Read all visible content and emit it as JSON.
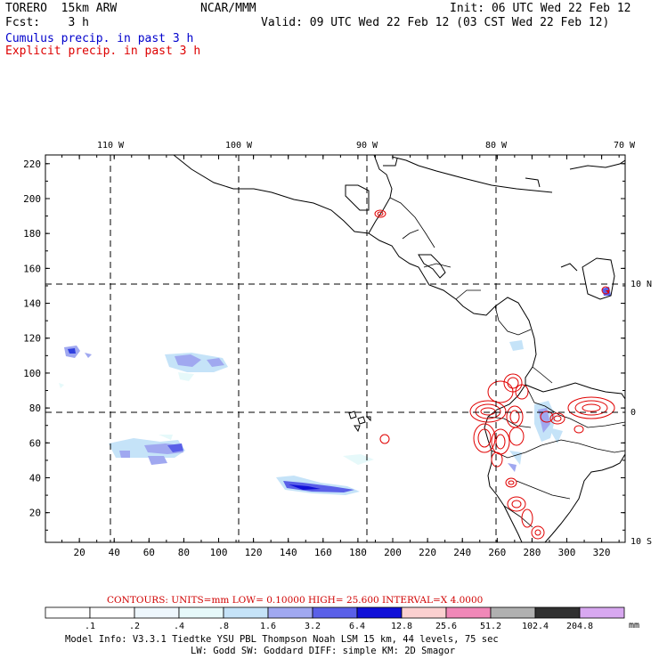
{
  "header": {
    "model": "TORERO  15km ARW",
    "org": "NCAR/MMM",
    "init": "Init: 06 UTC Wed 22 Feb 12",
    "fcst": "Fcst:    3 h",
    "valid": "Valid: 09 UTC Wed 22 Feb 12 (03 CST Wed 22 Feb 12)",
    "field1": "Cumulus precip. in past 3 h",
    "field2": "Explicit precip. in past 3 h"
  },
  "colors": {
    "field1": "#0000cc",
    "field2": "#dd0000",
    "contour": "#e00000",
    "coast": "#000000"
  },
  "map": {
    "top_lon_labels": [
      "110 W",
      "100 W",
      "90 W",
      "80 W",
      "70 W"
    ],
    "right_lat_labels": [
      "10 N",
      "0",
      "10 S"
    ],
    "y_ticks": [
      "20",
      "40",
      "60",
      "80",
      "100",
      "120",
      "140",
      "160",
      "180",
      "200",
      "220"
    ],
    "x_ticks": [
      "20",
      "40",
      "60",
      "80",
      "100",
      "120",
      "140",
      "160",
      "180",
      "200",
      "220",
      "240",
      "260",
      "280",
      "300",
      "320"
    ]
  },
  "contours_line": {
    "label": "CONTOURS:  UNITS=mm  LOW= 0.10000      HIGH=  25.600      INTERVAL=X  4.0000"
  },
  "colorbar": {
    "unit": "mm",
    "labels": [
      ".1",
      ".2",
      ".4",
      ".8",
      "1.6",
      "3.2",
      "6.4",
      "12.8",
      "25.6",
      "51.2",
      "102.4",
      "204.8"
    ],
    "colors": [
      "#ffffff",
      "#ffffff",
      "#eef7fd",
      "#e6f9fa",
      "#c5e3f8",
      "#a0a8f0",
      "#5a60e8",
      "#1010d8",
      "#fbd0d0",
      "#f088b8",
      "#b0b0b0",
      "#303030",
      "#d8a8f0"
    ]
  },
  "footer": {
    "line1": "Model Info: V3.3.1   Tiedtke YSU PBL  Thompson    Noah LSM  15 km,   44 levels,   75 sec",
    "line2": "LW: Godd SW: Goddard DIFF: simple KM: 2D Smagor"
  }
}
